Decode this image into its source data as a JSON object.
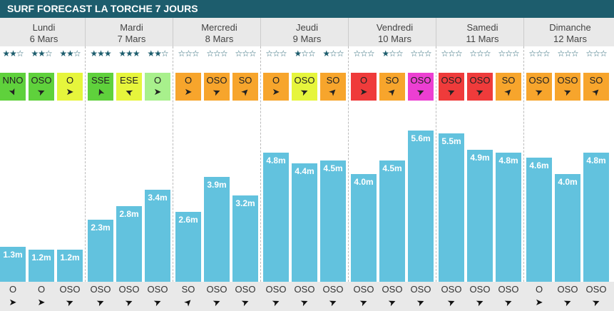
{
  "title": "SURF FORECAST LA TORCHE 7 JOURS",
  "days": [
    {
      "day": "Lundi",
      "date": "6 Mars",
      "stars": [
        2,
        2,
        2
      ],
      "wind": [
        {
          "dir": "NNO",
          "color": "#5fd13c"
        },
        {
          "dir": "OSO",
          "color": "#5fd13c"
        },
        {
          "dir": "O",
          "color": "#e6f53c"
        }
      ],
      "heights": [
        1.3,
        1.2,
        1.2
      ],
      "height_labels": [
        "1.3m",
        "1.2m",
        "1.2m"
      ],
      "swell": [
        "O",
        "O",
        "OSO"
      ]
    },
    {
      "day": "Mardi",
      "date": "7 Mars",
      "stars": [
        3,
        3,
        2
      ],
      "wind": [
        {
          "dir": "SSE",
          "color": "#5fd13c"
        },
        {
          "dir": "ESE",
          "color": "#e6f53c"
        },
        {
          "dir": "O",
          "color": "#a8f08c"
        }
      ],
      "heights": [
        2.3,
        2.8,
        3.4
      ],
      "height_labels": [
        "2.3m",
        "2.8m",
        "3.4m"
      ],
      "swell": [
        "OSO",
        "OSO",
        "OSO"
      ]
    },
    {
      "day": "Mercredi",
      "date": "8 Mars",
      "stars": [
        0,
        0,
        0
      ],
      "wind": [
        {
          "dir": "O",
          "color": "#f7a52c"
        },
        {
          "dir": "OSO",
          "color": "#f7a52c"
        },
        {
          "dir": "SO",
          "color": "#f7a52c"
        }
      ],
      "heights": [
        2.6,
        3.9,
        3.2
      ],
      "height_labels": [
        "2.6m",
        "3.9m",
        "3.2m"
      ],
      "swell": [
        "SO",
        "OSO",
        "OSO"
      ]
    },
    {
      "day": "Jeudi",
      "date": "9 Mars",
      "stars": [
        0,
        1,
        1
      ],
      "wind": [
        {
          "dir": "O",
          "color": "#f7a52c"
        },
        {
          "dir": "OSO",
          "color": "#e6f53c"
        },
        {
          "dir": "SO",
          "color": "#f7a52c"
        }
      ],
      "heights": [
        4.8,
        4.4,
        4.5
      ],
      "height_labels": [
        "4.8m",
        "4.4m",
        "4.5m"
      ],
      "swell": [
        "OSO",
        "OSO",
        "OSO"
      ]
    },
    {
      "day": "Vendredi",
      "date": "10 Mars",
      "stars": [
        0,
        1,
        0
      ],
      "wind": [
        {
          "dir": "O",
          "color": "#ef3b3b"
        },
        {
          "dir": "SO",
          "color": "#f7a52c"
        },
        {
          "dir": "OSO",
          "color": "#ec3fd2"
        }
      ],
      "heights": [
        4.0,
        4.5,
        5.6
      ],
      "height_labels": [
        "4.0m",
        "4.5m",
        "5.6m"
      ],
      "swell": [
        "OSO",
        "OSO",
        "OSO"
      ]
    },
    {
      "day": "Samedi",
      "date": "11 Mars",
      "stars": [
        0,
        0,
        0
      ],
      "wind": [
        {
          "dir": "OSO",
          "color": "#ef3b3b"
        },
        {
          "dir": "OSO",
          "color": "#ef3b3b"
        },
        {
          "dir": "SO",
          "color": "#f7a52c"
        }
      ],
      "heights": [
        5.5,
        4.9,
        4.8
      ],
      "height_labels": [
        "5.5m",
        "4.9m",
        "4.8m"
      ],
      "swell": [
        "OSO",
        "OSO",
        "OSO"
      ]
    },
    {
      "day": "Dimanche",
      "date": "12 Mars",
      "stars": [
        0,
        0,
        0
      ],
      "wind": [
        {
          "dir": "OSO",
          "color": "#f7a52c"
        },
        {
          "dir": "OSO",
          "color": "#f7a52c"
        },
        {
          "dir": "SO",
          "color": "#f7a52c"
        }
      ],
      "heights": [
        4.6,
        4.0,
        4.8
      ],
      "height_labels": [
        "4.6m",
        "4.0m",
        "4.8m"
      ],
      "swell": [
        "O",
        "OSO",
        "OSO"
      ]
    }
  ]
}
